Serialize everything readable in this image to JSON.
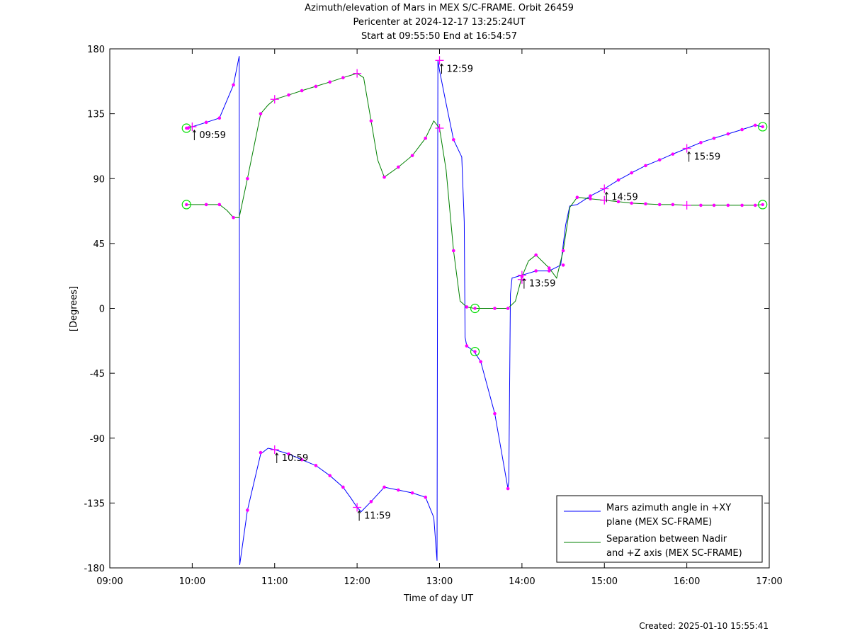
{
  "chart_data": {
    "type": "line",
    "title_lines": [
      "Azimuth/elevation of Mars in MEX S/C-FRAME.  Orbit 26459",
      "Pericenter at 2024-12-17 13:25:24UT",
      "Start at 09:55:50 End at 16:54:57"
    ],
    "xlabel": "Time of day UT",
    "ylabel": "[Degrees]",
    "xlim": [
      9,
      17
    ],
    "ylim": [
      -180,
      180
    ],
    "x_ticks": [
      9,
      10,
      11,
      12,
      13,
      14,
      15,
      16,
      17
    ],
    "x_tick_labels": [
      "09:00",
      "10:00",
      "11:00",
      "12:00",
      "13:00",
      "14:00",
      "15:00",
      "16:00",
      "17:00"
    ],
    "y_ticks": [
      180,
      135,
      90,
      45,
      0,
      -45,
      -90,
      -135,
      -180
    ],
    "y_tick_labels": [
      "180",
      "135",
      "90",
      "45",
      "0",
      "-45",
      "-90",
      "-135",
      "-180"
    ],
    "grid": false,
    "legend_position": "bottom-right",
    "series": [
      {
        "name": "Mars azimuth angle in +XY plane (MEX SC-FRAME)",
        "legend_lines": [
          "Mars azimuth angle in +XY",
          "plane (MEX SC-FRAME)"
        ],
        "color": "#0000ff",
        "points": [
          [
            9.93,
            125
          ],
          [
            10.0,
            126
          ],
          [
            10.17,
            129
          ],
          [
            10.33,
            132
          ],
          [
            10.5,
            155
          ],
          [
            10.57,
            175
          ],
          [
            10.573,
            0
          ],
          [
            10.576,
            -178
          ],
          [
            10.67,
            -140
          ],
          [
            10.83,
            -101
          ],
          [
            10.92,
            -97
          ],
          [
            11.0,
            -98
          ],
          [
            11.17,
            -101
          ],
          [
            11.33,
            -105
          ],
          [
            11.5,
            -109
          ],
          [
            11.67,
            -116
          ],
          [
            11.83,
            -124
          ],
          [
            11.93,
            -132
          ],
          [
            12.0,
            -138
          ],
          [
            12.05,
            -141
          ],
          [
            12.17,
            -134
          ],
          [
            12.33,
            -124
          ],
          [
            12.5,
            -126
          ],
          [
            12.67,
            -128
          ],
          [
            12.83,
            -131
          ],
          [
            12.93,
            -145
          ],
          [
            12.97,
            -175
          ],
          [
            12.975,
            0
          ],
          [
            12.98,
            172
          ],
          [
            13.0,
            165
          ],
          [
            13.07,
            145
          ],
          [
            13.17,
            117
          ],
          [
            13.27,
            105
          ],
          [
            13.3,
            60
          ],
          [
            13.31,
            -20
          ],
          [
            13.33,
            -26
          ],
          [
            13.42,
            -30
          ],
          [
            13.5,
            -37
          ],
          [
            13.67,
            -73
          ],
          [
            13.83,
            -125
          ],
          [
            13.84,
            -120
          ],
          [
            13.86,
            10
          ],
          [
            13.88,
            21
          ],
          [
            14.0,
            23
          ],
          [
            14.17,
            26
          ],
          [
            14.33,
            26
          ],
          [
            14.47,
            30
          ],
          [
            14.53,
            58
          ],
          [
            14.58,
            71
          ],
          [
            14.67,
            72
          ],
          [
            14.83,
            78
          ],
          [
            15.0,
            83
          ],
          [
            15.17,
            89
          ],
          [
            15.33,
            94
          ],
          [
            15.5,
            99
          ],
          [
            15.67,
            103
          ],
          [
            15.83,
            107
          ],
          [
            16.0,
            111
          ],
          [
            16.17,
            115
          ],
          [
            16.33,
            118
          ],
          [
            16.5,
            121
          ],
          [
            16.67,
            124
          ],
          [
            16.83,
            127
          ],
          [
            16.92,
            126
          ]
        ]
      },
      {
        "name": "Separation between Nadir and +Z axis (MEX SC-FRAME)",
        "legend_lines": [
          "Separation between Nadir",
          "and +Z axis (MEX SC-FRAME)"
        ],
        "color": "#008000",
        "points": [
          [
            9.93,
            72
          ],
          [
            10.0,
            72
          ],
          [
            10.17,
            72
          ],
          [
            10.33,
            72
          ],
          [
            10.42,
            68
          ],
          [
            10.5,
            63
          ],
          [
            10.57,
            63
          ],
          [
            10.67,
            90
          ],
          [
            10.83,
            135
          ],
          [
            10.92,
            141
          ],
          [
            11.0,
            145
          ],
          [
            11.17,
            148
          ],
          [
            11.33,
            151
          ],
          [
            11.5,
            154
          ],
          [
            11.67,
            157
          ],
          [
            11.83,
            160
          ],
          [
            12.0,
            163
          ],
          [
            12.08,
            160
          ],
          [
            12.17,
            130
          ],
          [
            12.25,
            103
          ],
          [
            12.33,
            91
          ],
          [
            12.5,
            98
          ],
          [
            12.67,
            106
          ],
          [
            12.83,
            118
          ],
          [
            12.93,
            130
          ],
          [
            13.0,
            125
          ],
          [
            13.08,
            96
          ],
          [
            13.17,
            40
          ],
          [
            13.25,
            5
          ],
          [
            13.33,
            1
          ],
          [
            13.42,
            0
          ],
          [
            13.5,
            0
          ],
          [
            13.67,
            0
          ],
          [
            13.83,
            0
          ],
          [
            13.92,
            5
          ],
          [
            14.0,
            22
          ],
          [
            14.08,
            33
          ],
          [
            14.17,
            37
          ],
          [
            14.33,
            28
          ],
          [
            14.42,
            21
          ],
          [
            14.5,
            40
          ],
          [
            14.58,
            70
          ],
          [
            14.67,
            77
          ],
          [
            14.83,
            76
          ],
          [
            15.0,
            75
          ],
          [
            15.17,
            74
          ],
          [
            15.33,
            73
          ],
          [
            15.5,
            72.5
          ],
          [
            15.67,
            72
          ],
          [
            15.83,
            72
          ],
          [
            16.0,
            71.5
          ],
          [
            16.17,
            71.5
          ],
          [
            16.33,
            71.5
          ],
          [
            16.5,
            71.5
          ],
          [
            16.67,
            71.5
          ],
          [
            16.83,
            71.5
          ],
          [
            16.92,
            72
          ]
        ]
      }
    ],
    "dot_markers_color": "#ff00ff",
    "dot_markers": [
      [
        9.95,
        125
      ],
      [
        10.17,
        129
      ],
      [
        10.33,
        132
      ],
      [
        10.5,
        155
      ],
      [
        10.67,
        -140
      ],
      [
        10.83,
        -100
      ],
      [
        11.17,
        -101
      ],
      [
        11.33,
        -105
      ],
      [
        11.5,
        -109
      ],
      [
        11.67,
        -116
      ],
      [
        11.83,
        -124
      ],
      [
        12.17,
        -134
      ],
      [
        12.33,
        -124
      ],
      [
        12.5,
        -126
      ],
      [
        12.67,
        -128
      ],
      [
        12.83,
        -131
      ],
      [
        13.17,
        117
      ],
      [
        13.33,
        -26
      ],
      [
        13.5,
        -37
      ],
      [
        13.67,
        -73
      ],
      [
        13.83,
        -125
      ],
      [
        14.0,
        22
      ],
      [
        14.17,
        26
      ],
      [
        14.33,
        26
      ],
      [
        14.5,
        30
      ],
      [
        14.67,
        77
      ],
      [
        14.83,
        78
      ],
      [
        15.17,
        89
      ],
      [
        15.33,
        94
      ],
      [
        15.5,
        99
      ],
      [
        15.67,
        103
      ],
      [
        15.83,
        107
      ],
      [
        16.17,
        115
      ],
      [
        16.33,
        118
      ],
      [
        16.5,
        121
      ],
      [
        16.67,
        124
      ],
      [
        16.83,
        127
      ],
      [
        10.17,
        72
      ],
      [
        10.33,
        72
      ],
      [
        10.5,
        63
      ],
      [
        10.67,
        90
      ],
      [
        10.83,
        135
      ],
      [
        11.17,
        148
      ],
      [
        11.33,
        151
      ],
      [
        11.5,
        154
      ],
      [
        11.67,
        157
      ],
      [
        11.83,
        160
      ],
      [
        12.17,
        130
      ],
      [
        12.33,
        91
      ],
      [
        12.5,
        98
      ],
      [
        12.67,
        106
      ],
      [
        12.83,
        118
      ],
      [
        13.17,
        40
      ],
      [
        13.33,
        1
      ],
      [
        13.67,
        0
      ],
      [
        13.83,
        0
      ],
      [
        14.17,
        37
      ],
      [
        14.33,
        28
      ],
      [
        14.5,
        40
      ],
      [
        14.83,
        76
      ],
      [
        15.17,
        74
      ],
      [
        15.33,
        73
      ],
      [
        15.5,
        72.5
      ],
      [
        15.67,
        72
      ],
      [
        15.83,
        72
      ],
      [
        16.17,
        71.5
      ],
      [
        16.33,
        71.5
      ],
      [
        16.5,
        71.5
      ],
      [
        16.67,
        71.5
      ],
      [
        16.83,
        71.5
      ]
    ],
    "cross_markers": [
      [
        10.0,
        126
      ],
      [
        11.0,
        -98
      ],
      [
        12.0,
        -138
      ],
      [
        13.0,
        172
      ],
      [
        14.0,
        23
      ],
      [
        15.0,
        83
      ],
      [
        16.0,
        111
      ],
      [
        11.0,
        145
      ],
      [
        12.0,
        163
      ],
      [
        13.0,
        125
      ],
      [
        14.0,
        20
      ],
      [
        15.0,
        75
      ],
      [
        16.0,
        71.5
      ]
    ],
    "circle_markers": [
      [
        9.93,
        125
      ],
      [
        9.93,
        72
      ],
      [
        13.43,
        0
      ],
      [
        13.43,
        -30
      ],
      [
        16.92,
        126
      ],
      [
        16.92,
        72
      ]
    ],
    "time_annotations": [
      {
        "label": "09:59",
        "x": 10.0,
        "y": 126
      },
      {
        "label": "10:59",
        "x": 11.0,
        "y": -98
      },
      {
        "label": "11:59",
        "x": 12.0,
        "y": -138
      },
      {
        "label": "12:59",
        "x": 13.0,
        "y": 172
      },
      {
        "label": "13:59",
        "x": 14.0,
        "y": 23
      },
      {
        "label": "14:59",
        "x": 15.0,
        "y": 83
      },
      {
        "label": "15:59",
        "x": 16.0,
        "y": 111
      }
    ]
  },
  "footer": {
    "created": "Created: 2025-01-10 15:55:41"
  }
}
